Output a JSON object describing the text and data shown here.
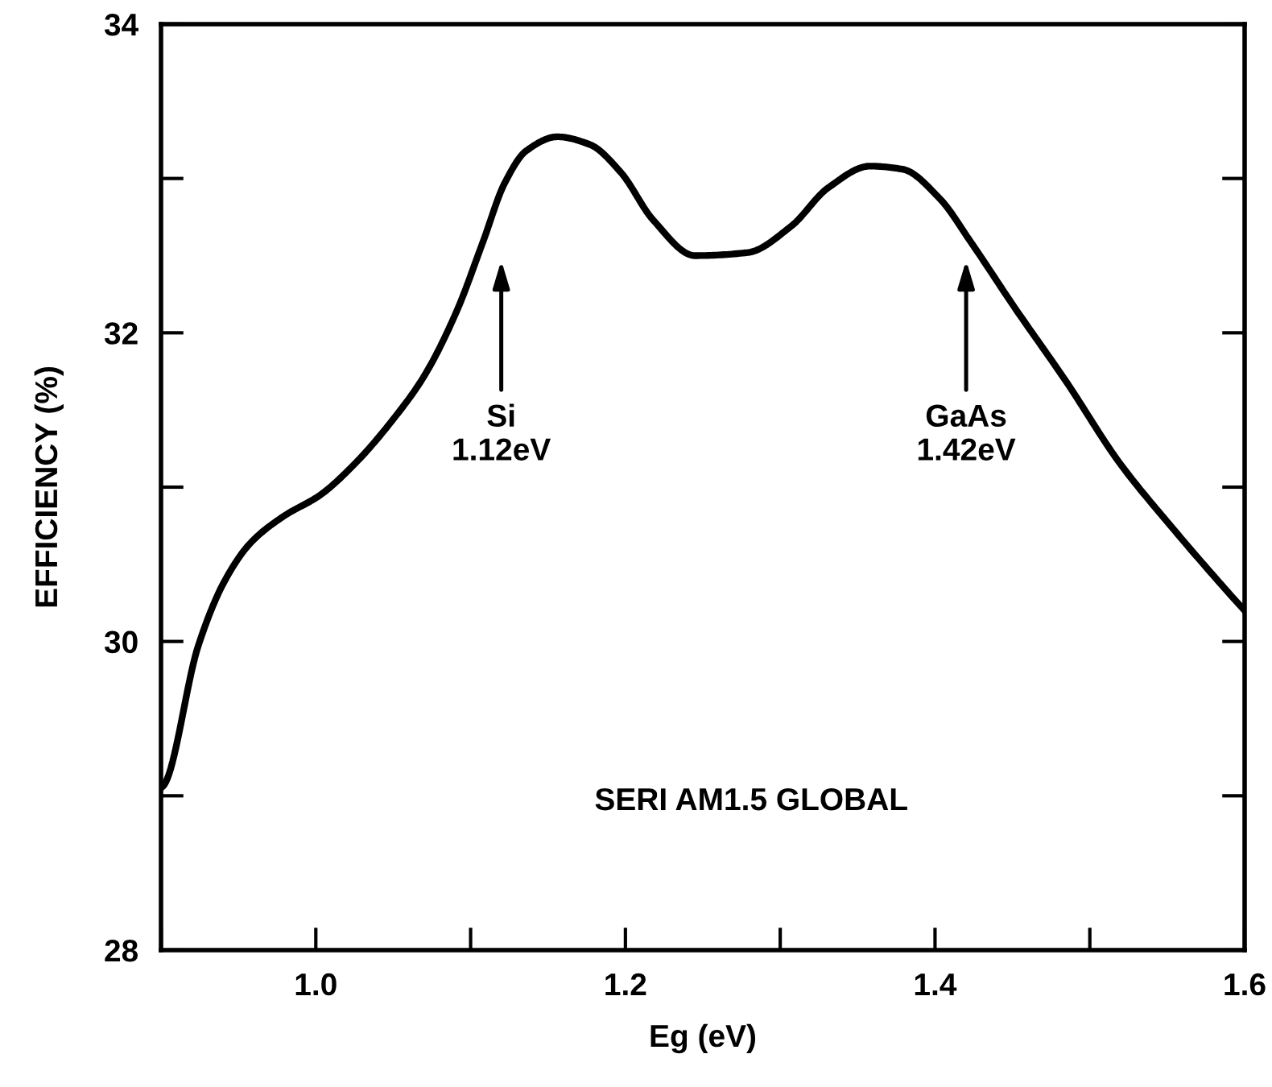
{
  "chart_data": {
    "type": "line",
    "xlabel": "Eg (eV)",
    "ylabel": "EFFICIENCY (%)",
    "x": [
      0.9,
      0.902,
      0.924,
      0.941,
      0.958,
      0.979,
      1.003,
      1.026,
      1.05,
      1.07,
      1.091,
      1.108,
      1.122,
      1.136,
      1.156,
      1.177,
      1.197,
      1.218,
      1.245,
      1.279,
      1.307,
      1.331,
      1.358,
      1.379,
      1.403,
      1.423,
      1.451,
      1.485,
      1.519,
      1.553,
      1.591,
      1.6
    ],
    "series": [
      {
        "color": "#000000",
        "values": [
          29.05,
          29.07,
          29.97,
          30.39,
          30.64,
          30.81,
          30.95,
          31.16,
          31.44,
          31.72,
          32.14,
          32.59,
          32.97,
          33.18,
          33.27,
          33.22,
          33.04,
          32.73,
          32.5,
          32.52,
          32.69,
          32.94,
          33.08,
          33.06,
          32.87,
          32.59,
          32.17,
          31.68,
          31.16,
          30.74,
          30.3,
          30.2
        ]
      }
    ],
    "xlim": [
      0.9,
      1.6
    ],
    "ylim": [
      28,
      34
    ],
    "xticks": [
      {
        "value": 0.9,
        "label": null
      },
      {
        "value": 1.0,
        "label": "1.0"
      },
      {
        "value": 1.1,
        "label": null
      },
      1.2,
      {
        "value": 1.3,
        "label": null
      },
      1.4,
      {
        "value": 1.5,
        "label": null
      },
      1.6
    ],
    "yticks": [
      28,
      {
        "value": 29,
        "label": null
      },
      30,
      {
        "value": 31,
        "label": null
      },
      32,
      {
        "value": 33,
        "label": null
      },
      34
    ],
    "annotations": [
      "Si\n1.12eV",
      "GaAs\n1.42eV",
      "SERI AM1.5 GLOBAL"
    ],
    "grid": false,
    "legend": false,
    "marker": "none",
    "line_style": "solid"
  }
}
